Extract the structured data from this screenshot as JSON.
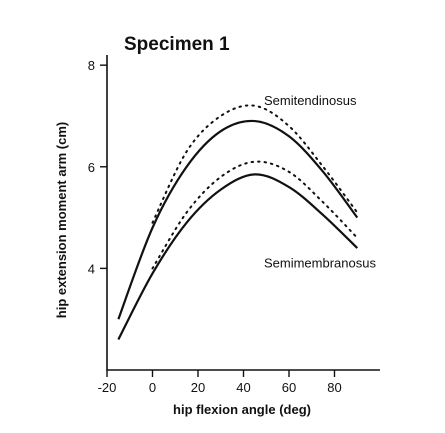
{
  "chart_data": {
    "type": "line",
    "title": "Specimen 1",
    "xlabel": "hip flexion angle (deg)",
    "ylabel": "hip extension moment arm (cm)",
    "xlim": [
      -20,
      100
    ],
    "ylim": [
      2,
      8.2
    ],
    "x_ticks": [
      -20,
      0,
      20,
      40,
      60,
      80
    ],
    "y_ticks": [
      4,
      6,
      8
    ],
    "grid": false,
    "legend": "none",
    "series_labels": [
      {
        "key": "semitendinosus",
        "text": "Semitendinosus"
      },
      {
        "key": "semimembranosus",
        "text": "Semimembranosus"
      }
    ],
    "series": [
      {
        "key": "semitendinosus",
        "style": "solid",
        "x": [
          -15,
          0,
          15,
          30,
          45,
          60,
          75,
          90
        ],
        "y": [
          3.0,
          4.8,
          6.0,
          6.7,
          6.9,
          6.6,
          5.9,
          5.0
        ]
      },
      {
        "key": "semitendinosus",
        "style": "dotted",
        "x": [
          0,
          15,
          30,
          45,
          60,
          75,
          90
        ],
        "y": [
          4.9,
          6.3,
          7.0,
          7.2,
          6.8,
          6.0,
          5.1
        ]
      },
      {
        "key": "semimembranosus",
        "style": "solid",
        "x": [
          -15,
          0,
          15,
          30,
          45,
          60,
          75,
          90
        ],
        "y": [
          2.6,
          3.9,
          4.9,
          5.55,
          5.85,
          5.6,
          5.05,
          4.4
        ]
      },
      {
        "key": "semimembranosus",
        "style": "dotted",
        "x": [
          0,
          15,
          30,
          45,
          60,
          75,
          90
        ],
        "y": [
          4.0,
          5.1,
          5.8,
          6.1,
          5.9,
          5.3,
          4.6
        ]
      }
    ]
  }
}
